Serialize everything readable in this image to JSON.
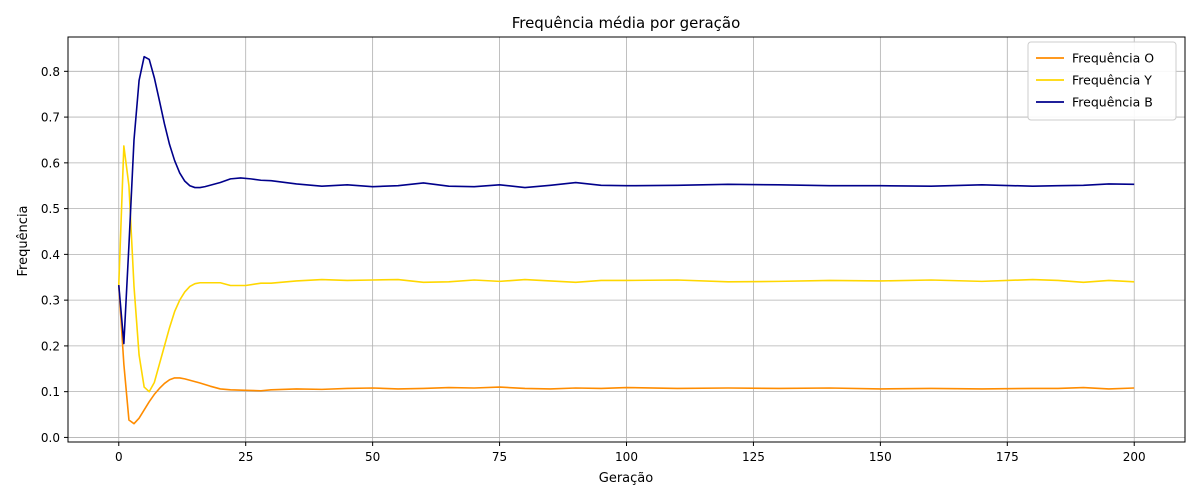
{
  "chart_data": {
    "type": "line",
    "title": "Frequência média por geração",
    "xlabel": "Geração",
    "ylabel": "Frequência",
    "xlim": [
      -10,
      210
    ],
    "ylim": [
      -0.01,
      0.875
    ],
    "xticks": [
      0,
      25,
      50,
      75,
      100,
      125,
      150,
      175,
      200
    ],
    "xtick_labels": [
      "0",
      "25",
      "50",
      "75",
      "100",
      "125",
      "150",
      "175",
      "200"
    ],
    "yticks": [
      0.0,
      0.1,
      0.2,
      0.3,
      0.4,
      0.5,
      0.6,
      0.7,
      0.8
    ],
    "ytick_labels": [
      "0.0",
      "0.1",
      "0.2",
      "0.3",
      "0.4",
      "0.5",
      "0.6",
      "0.7",
      "0.8"
    ],
    "grid": true,
    "legend_position": "top-right",
    "series": [
      {
        "name": "Frequência O",
        "color": "#ff8c00",
        "x": [
          0,
          1,
          2,
          3,
          4,
          5,
          6,
          7,
          8,
          9,
          10,
          11,
          12,
          13,
          14,
          15,
          16,
          18,
          20,
          22,
          25,
          28,
          30,
          35,
          40,
          45,
          50,
          55,
          60,
          65,
          70,
          75,
          80,
          85,
          90,
          95,
          100,
          110,
          120,
          130,
          140,
          150,
          160,
          170,
          180,
          185,
          190,
          195,
          200
        ],
        "y": [
          0.333,
          0.16,
          0.038,
          0.03,
          0.042,
          0.06,
          0.078,
          0.094,
          0.107,
          0.118,
          0.126,
          0.13,
          0.13,
          0.128,
          0.125,
          0.122,
          0.119,
          0.112,
          0.106,
          0.104,
          0.103,
          0.102,
          0.104,
          0.106,
          0.105,
          0.107,
          0.108,
          0.106,
          0.107,
          0.109,
          0.108,
          0.11,
          0.107,
          0.106,
          0.108,
          0.107,
          0.109,
          0.107,
          0.108,
          0.107,
          0.108,
          0.106,
          0.107,
          0.106,
          0.107,
          0.107,
          0.109,
          0.106,
          0.108
        ]
      },
      {
        "name": "Frequência Y",
        "color": "#ffd700",
        "x": [
          0,
          1,
          2,
          3,
          4,
          5,
          6,
          7,
          8,
          9,
          10,
          11,
          12,
          13,
          14,
          15,
          16,
          17,
          18,
          20,
          22,
          25,
          28,
          30,
          35,
          40,
          45,
          50,
          55,
          60,
          65,
          70,
          75,
          80,
          85,
          90,
          95,
          100,
          110,
          120,
          130,
          140,
          150,
          160,
          170,
          180,
          185,
          190,
          195,
          200
        ],
        "y": [
          0.333,
          0.637,
          0.55,
          0.33,
          0.18,
          0.11,
          0.1,
          0.12,
          0.16,
          0.2,
          0.24,
          0.275,
          0.3,
          0.318,
          0.33,
          0.336,
          0.338,
          0.338,
          0.338,
          0.338,
          0.332,
          0.332,
          0.337,
          0.337,
          0.342,
          0.345,
          0.343,
          0.344,
          0.345,
          0.339,
          0.34,
          0.344,
          0.341,
          0.345,
          0.342,
          0.339,
          0.343,
          0.343,
          0.344,
          0.34,
          0.341,
          0.343,
          0.342,
          0.344,
          0.341,
          0.345,
          0.343,
          0.339,
          0.343,
          0.34
        ]
      },
      {
        "name": "Frequência B",
        "color": "#00008b",
        "x": [
          0,
          1,
          2,
          3,
          4,
          5,
          6,
          7,
          8,
          9,
          10,
          11,
          12,
          13,
          14,
          15,
          16,
          17,
          18,
          20,
          22,
          24,
          26,
          28,
          30,
          35,
          40,
          45,
          50,
          55,
          60,
          65,
          70,
          75,
          80,
          85,
          90,
          95,
          100,
          110,
          120,
          130,
          140,
          150,
          160,
          170,
          180,
          185,
          190,
          195,
          200
        ],
        "y": [
          0.333,
          0.205,
          0.42,
          0.65,
          0.78,
          0.832,
          0.826,
          0.786,
          0.736,
          0.685,
          0.64,
          0.605,
          0.578,
          0.56,
          0.55,
          0.546,
          0.546,
          0.548,
          0.551,
          0.557,
          0.565,
          0.567,
          0.565,
          0.562,
          0.561,
          0.554,
          0.549,
          0.552,
          0.548,
          0.55,
          0.556,
          0.549,
          0.548,
          0.552,
          0.546,
          0.551,
          0.557,
          0.551,
          0.55,
          0.551,
          0.553,
          0.552,
          0.55,
          0.55,
          0.549,
          0.552,
          0.549,
          0.55,
          0.551,
          0.554,
          0.553
        ]
      }
    ]
  }
}
